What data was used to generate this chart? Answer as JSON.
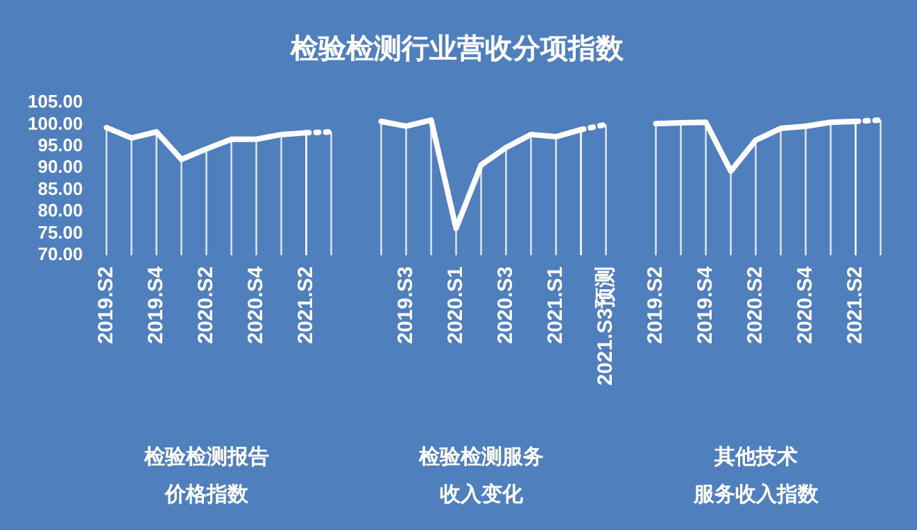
{
  "chart_data": {
    "type": "line",
    "title": "检验检测行业营收分项指数",
    "categories": [
      "2019.S2",
      null,
      "2019.S4",
      null,
      "2020.S2",
      null,
      "2020.S4",
      null,
      "2021.S2",
      null,
      null,
      null,
      "2019.S3",
      null,
      "2020.S1",
      null,
      "2020.S3",
      null,
      "2021.S1",
      null,
      "2021.S3预测",
      null,
      "2019.S2",
      null,
      "2019.S4",
      null,
      "2020.S2",
      null,
      "2020.S4",
      null,
      "2021.S2",
      null
    ],
    "series": [
      {
        "color": "#ffffff",
        "values": [
          99.3,
          96.9,
          98.3,
          92.0,
          94.4,
          96.6,
          96.6,
          97.7,
          98.1,
          null,
          null,
          null,
          null,
          null,
          null,
          null,
          null,
          null,
          null,
          null,
          null,
          null,
          null,
          null,
          null,
          null,
          null,
          null,
          null,
          null,
          null,
          null
        ]
      },
      {
        "color": "#ffffff",
        "line_style": "dotted",
        "values": [
          null,
          null,
          null,
          null,
          null,
          null,
          null,
          null,
          98.1,
          98.3,
          null,
          null,
          null,
          null,
          null,
          null,
          null,
          null,
          null,
          null,
          null,
          null,
          null,
          null,
          null,
          null,
          null,
          null,
          null,
          null,
          null,
          null
        ]
      },
      {
        "color": "#ffffff",
        "values": [
          null,
          null,
          null,
          null,
          null,
          null,
          null,
          null,
          null,
          null,
          null,
          100.7,
          99.6,
          101.0,
          76.2,
          90.7,
          94.7,
          97.7,
          97.2,
          98.8,
          null,
          null,
          null,
          null,
          null,
          null,
          null,
          null,
          null,
          null,
          null,
          null
        ]
      },
      {
        "color": "#ffffff",
        "line_style": "dotted",
        "values": [
          null,
          null,
          null,
          null,
          null,
          null,
          null,
          null,
          null,
          null,
          null,
          null,
          null,
          null,
          null,
          null,
          null,
          null,
          null,
          98.8,
          100.0,
          null,
          null,
          null,
          null,
          null,
          null,
          null,
          null,
          null,
          null,
          null
        ]
      },
      {
        "color": "#ffffff",
        "values": [
          null,
          null,
          null,
          null,
          null,
          null,
          null,
          null,
          null,
          null,
          null,
          null,
          null,
          null,
          null,
          null,
          null,
          null,
          null,
          null,
          null,
          null,
          100.2,
          100.4,
          100.5,
          89.3,
          96.4,
          99.1,
          99.6,
          100.5,
          100.7,
          null
        ]
      },
      {
        "color": "#ffffff",
        "line_style": "dotted",
        "values": [
          null,
          null,
          null,
          null,
          null,
          null,
          null,
          null,
          null,
          null,
          null,
          null,
          null,
          null,
          null,
          null,
          null,
          null,
          null,
          null,
          null,
          null,
          null,
          null,
          null,
          null,
          null,
          null,
          null,
          null,
          100.7,
          101.0
        ]
      }
    ],
    "ylim": [
      70,
      105
    ],
    "yticks": [
      {
        "value": 70,
        "label": "70.00"
      },
      {
        "value": 75,
        "label": "75.00"
      },
      {
        "value": 80,
        "label": "80.00"
      },
      {
        "value": 85,
        "label": "85.00"
      },
      {
        "value": 90,
        "label": "90.00"
      },
      {
        "value": 95,
        "label": "95.00"
      },
      {
        "value": 100,
        "label": "100.00"
      },
      {
        "value": 105,
        "label": "105.00"
      }
    ],
    "annotations": [
      "检验检测报告",
      "价格指数",
      "检验检测服务",
      "收入变化",
      "其他技术",
      "服务收入指数"
    ],
    "grid": "x",
    "legend": false,
    "marker": "none",
    "line_style": "solid"
  }
}
